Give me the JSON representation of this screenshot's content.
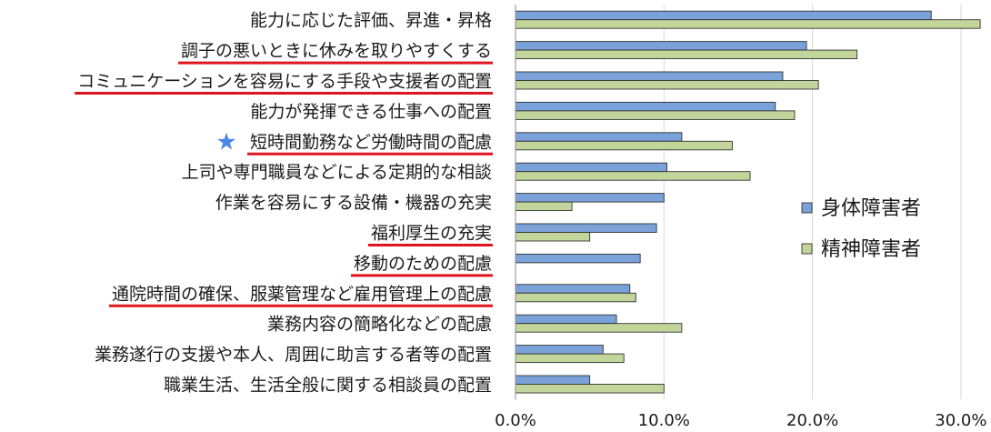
{
  "chart_data": {
    "type": "bar",
    "orientation": "horizontal",
    "categories": [
      "能力に応じた評価、昇進・昇格",
      "調子の悪いときに休みを取りやすくする",
      "コミュニケーションを容易にする手段や支援者の配置",
      "能力が発揮できる仕事への配置",
      "短時間勤務など労働時間の配慮",
      "上司や専門職員などによる定期的な相談",
      "作業を容易にする設備・機器の充実",
      "福利厚生の充実",
      "移動のための配慮",
      "通院時間の確保、服薬管理など雇用管理上の配慮",
      "業務内容の簡略化などの配慮",
      "業務遂行の支援や本人、周囲に助言する者等の配置",
      "職業生活、生活全般に関する相談員の配置"
    ],
    "series": [
      {
        "name": "身体障害者",
        "color": "#7ba1d9",
        "values": [
          28.0,
          19.6,
          18.0,
          17.5,
          11.2,
          10.2,
          10.0,
          9.5,
          8.4,
          7.7,
          6.8,
          5.9,
          5.0
        ]
      },
      {
        "name": "精神障害者",
        "color": "#c2d59b",
        "values": [
          31.3,
          23.0,
          20.4,
          18.8,
          14.6,
          15.8,
          3.8,
          5.0,
          null,
          8.1,
          11.2,
          7.3,
          10.0
        ]
      }
    ],
    "xlim": [
      0,
      31.5
    ],
    "xticks": [
      "0.0%",
      "10.0%",
      "20.0%",
      "30.0%"
    ],
    "xtick_values": [
      0,
      10,
      20,
      30
    ],
    "grid": "vertical",
    "legend_position": "right",
    "highlighted_categories": [
      1,
      2,
      4,
      7,
      8,
      9
    ],
    "starred_category": 4,
    "underline_color": "#e0141e",
    "star_color": "#4a86e8",
    "bar_outline": "#333333"
  }
}
